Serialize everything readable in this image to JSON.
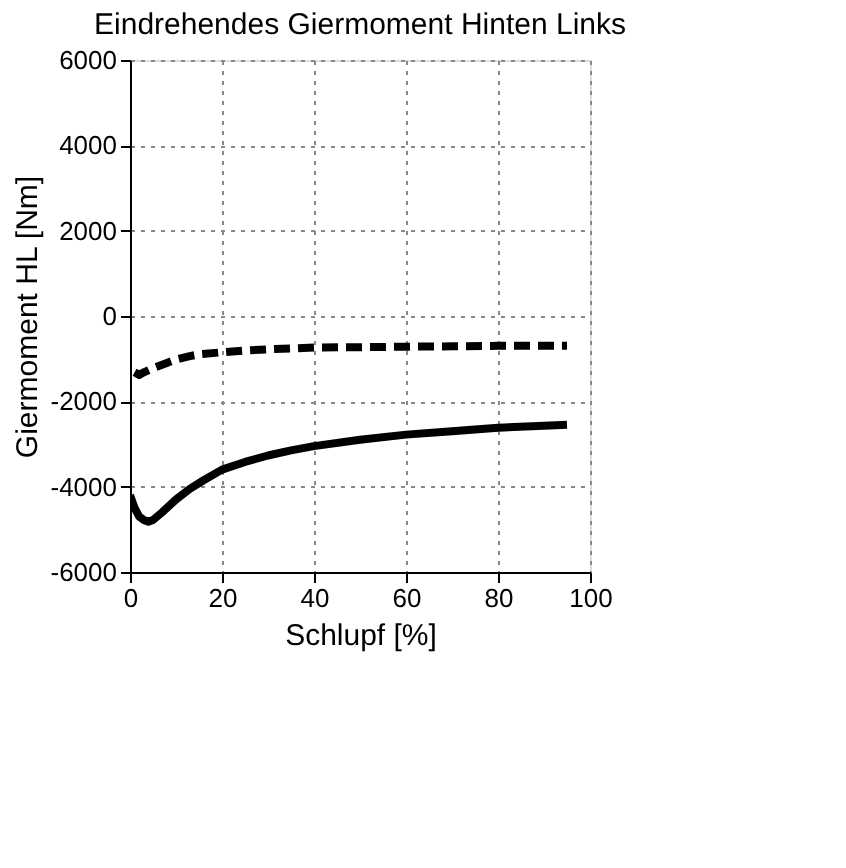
{
  "chart_data": {
    "type": "line",
    "title": "Eindrehendes Giermoment Hinten Links",
    "xlabel": "Schlupf [%]",
    "ylabel": "Giermoment HL [Nm]",
    "xlim": [
      0,
      100
    ],
    "xticks": [
      0,
      20,
      40,
      60,
      80,
      100
    ],
    "ylim": [
      -6000,
      6000
    ],
    "yticks": [
      -6000,
      -4000,
      -2000,
      0,
      2000,
      4000,
      6000
    ],
    "grid": true,
    "series": [
      {
        "color": "#000000",
        "line_style": "dashed",
        "x": [
          1,
          2,
          3,
          5,
          8,
          10,
          13,
          15,
          20,
          25,
          30,
          40,
          50,
          60,
          70,
          80,
          95
        ],
        "values": [
          -1320,
          -1380,
          -1320,
          -1220,
          -1100,
          -1020,
          -940,
          -900,
          -850,
          -810,
          -780,
          -740,
          -730,
          -720,
          -710,
          -700,
          -700
        ]
      },
      {
        "color": "#000000",
        "line_style": "solid",
        "x": [
          0,
          1,
          2,
          3,
          4,
          5,
          7,
          10,
          13,
          16,
          20,
          25,
          30,
          35,
          40,
          50,
          60,
          70,
          80,
          90,
          95
        ],
        "values": [
          -4200,
          -4500,
          -4700,
          -4780,
          -4820,
          -4780,
          -4600,
          -4300,
          -4050,
          -3850,
          -3600,
          -3420,
          -3270,
          -3150,
          -3050,
          -2900,
          -2780,
          -2700,
          -2620,
          -2570,
          -2550
        ]
      }
    ]
  }
}
